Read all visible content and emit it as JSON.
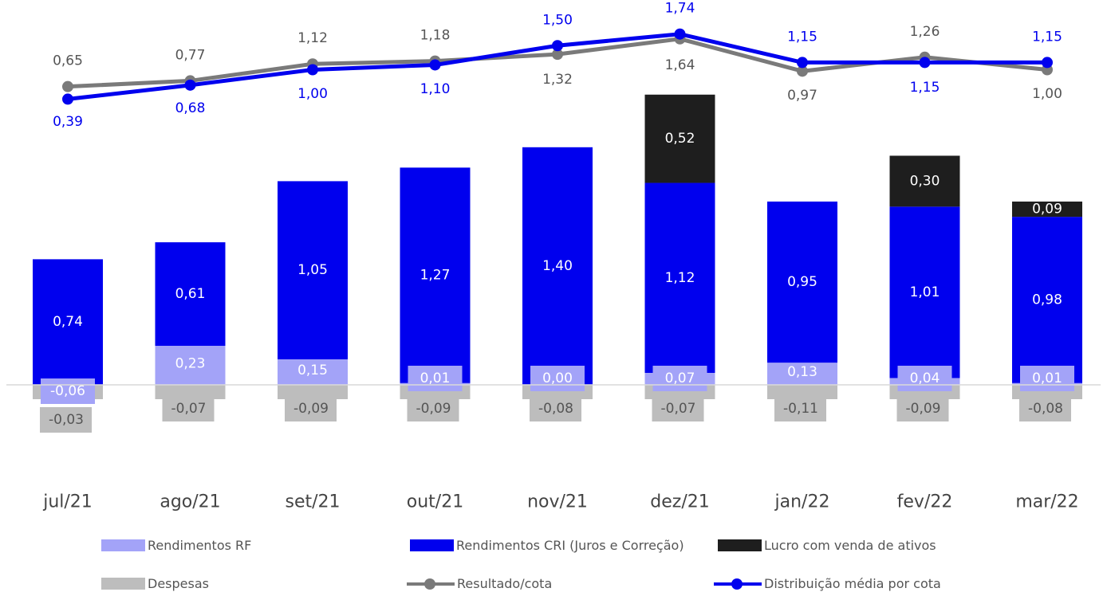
{
  "chart_data": {
    "type": "bar",
    "categories": [
      "jul/21",
      "ago/21",
      "set/21",
      "out/21",
      "nov/21",
      "dez/21",
      "jan/22",
      "fev/22",
      "mar/22"
    ],
    "series": [
      {
        "name": "Rendimentos RF",
        "kind": "bar",
        "color": "#a3a3f8",
        "values": [
          -0.06,
          0.23,
          0.15,
          0.01,
          0.0,
          0.07,
          0.13,
          0.04,
          0.01
        ],
        "labels": [
          "-0,06",
          "0,23",
          "0,15",
          "0,01",
          "0,00",
          "0,07",
          "0,13",
          "0,04",
          "0,01"
        ]
      },
      {
        "name": "Rendimentos CRI (Juros e Correção)",
        "kind": "bar",
        "color": "#0000ee",
        "values": [
          0.74,
          0.61,
          1.05,
          1.27,
          1.4,
          1.12,
          0.95,
          1.01,
          0.98
        ],
        "labels": [
          "0,74",
          "0,61",
          "1,05",
          "1,27",
          "1,40",
          "1,12",
          "0,95",
          "1,01",
          "0,98"
        ]
      },
      {
        "name": "Lucro com venda de ativos",
        "kind": "bar",
        "color": "#1e1e1e",
        "values": [
          0,
          0,
          0,
          0,
          0,
          0.52,
          0,
          0.3,
          0.09
        ],
        "labels": [
          "",
          "",
          "",
          "",
          "",
          "0,52",
          "",
          "0,30",
          "0,09"
        ]
      },
      {
        "name": "Despesas",
        "kind": "bar",
        "color": "#bdbdbd",
        "values": [
          -0.03,
          -0.07,
          -0.09,
          -0.09,
          -0.08,
          -0.07,
          -0.11,
          -0.09,
          -0.08
        ],
        "labels": [
          "-0,03",
          "-0,07",
          "-0,09",
          "-0,09",
          "-0,08",
          "-0,07",
          "-0,11",
          "-0,09",
          "-0,08"
        ]
      },
      {
        "name": "Resultado/cota",
        "kind": "line",
        "color": "#7a7a7a",
        "values": [
          0.65,
          0.77,
          1.12,
          1.18,
          1.32,
          1.64,
          0.97,
          1.26,
          1.0
        ],
        "labels": [
          "0,65",
          "0,77",
          "1,12",
          "1,18",
          "1,32",
          "1,64",
          "0,97",
          "1,26",
          "1,00"
        ]
      },
      {
        "name": "Distribuição média por cota",
        "kind": "line",
        "color": "#0000ee",
        "values": [
          0.39,
          0.68,
          1.0,
          1.1,
          1.5,
          1.74,
          1.15,
          1.15,
          1.15
        ],
        "labels": [
          "0,39",
          "0,68",
          "1,00",
          "1,10",
          "1,50",
          "1,74",
          "1,15",
          "1,15",
          "1,15"
        ]
      }
    ],
    "title": "",
    "xlabel": "",
    "ylabel": "",
    "grid": false,
    "legend_position": "bottom"
  }
}
